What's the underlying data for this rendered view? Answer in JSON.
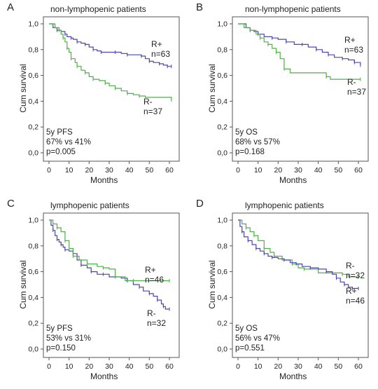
{
  "colors": {
    "R_plus": "#4a48a8",
    "R_minus": "#4fb04a"
  },
  "chart_data": [
    {
      "type": "line",
      "letter": "A",
      "title": "non-lymphopenic patients",
      "xlabel": "Months",
      "ylabel": "Cum survival",
      "xlim": [
        0,
        60
      ],
      "ylim": [
        0,
        1
      ],
      "xticks": [
        "0",
        "10",
        "20",
        "30",
        "40",
        "50",
        "60"
      ],
      "yticks": [
        "0,0",
        "0,2",
        "0,4",
        "0,6",
        "0,8",
        "1,0"
      ],
      "stats": [
        "5y PFS",
        "67% vs 41%",
        "p=0.005"
      ],
      "series": [
        {
          "name": "R+",
          "count": "n=63",
          "color": "#4a48a8",
          "x": [
            0,
            2,
            4,
            6,
            8,
            9,
            11,
            12,
            14,
            16,
            18,
            20,
            22,
            24,
            26,
            28,
            33,
            36,
            39,
            43,
            46,
            48,
            50,
            52,
            55,
            57,
            59,
            61
          ],
          "y": [
            1.0,
            0.97,
            0.95,
            0.94,
            0.92,
            0.9,
            0.89,
            0.88,
            0.86,
            0.85,
            0.84,
            0.82,
            0.8,
            0.79,
            0.78,
            0.78,
            0.78,
            0.77,
            0.76,
            0.76,
            0.75,
            0.73,
            0.71,
            0.7,
            0.69,
            0.68,
            0.67,
            0.67
          ]
        },
        {
          "name": "R-",
          "count": "n=37",
          "color": "#4fb04a",
          "x": [
            0,
            3,
            5,
            6,
            7,
            8,
            9,
            10,
            11,
            13,
            14,
            16,
            18,
            20,
            22,
            25,
            28,
            30,
            33,
            36,
            39,
            42,
            45,
            48,
            61
          ],
          "y": [
            1.0,
            0.97,
            0.95,
            0.92,
            0.89,
            0.86,
            0.81,
            0.78,
            0.73,
            0.7,
            0.67,
            0.64,
            0.62,
            0.59,
            0.57,
            0.56,
            0.54,
            0.52,
            0.5,
            0.48,
            0.46,
            0.45,
            0.44,
            0.43,
            0.41
          ]
        }
      ]
    },
    {
      "type": "line",
      "letter": "B",
      "title": "non-lymphopenic patients",
      "xlabel": "Months",
      "ylabel": "Cum survival",
      "xlim": [
        0,
        60
      ],
      "ylim": [
        0,
        1
      ],
      "xticks": [
        "0",
        "10",
        "20",
        "30",
        "40",
        "50",
        "60"
      ],
      "yticks": [
        "0,0",
        "0,2",
        "0,4",
        "0,6",
        "0,8",
        "1,0"
      ],
      "stats": [
        "5y OS",
        "68% vs 57%",
        "p=0.168"
      ],
      "series": [
        {
          "name": "R+",
          "count": "n=63",
          "color": "#4a48a8",
          "x": [
            0,
            4,
            6,
            8,
            10,
            13,
            17,
            20,
            24,
            28,
            32,
            35,
            39,
            42,
            45,
            48,
            52,
            55,
            58,
            61
          ],
          "y": [
            1.0,
            0.97,
            0.95,
            0.94,
            0.92,
            0.9,
            0.89,
            0.88,
            0.86,
            0.84,
            0.84,
            0.82,
            0.8,
            0.78,
            0.76,
            0.74,
            0.73,
            0.72,
            0.7,
            0.68
          ]
        },
        {
          "name": "R-",
          "count": "n=37",
          "color": "#4fb04a",
          "x": [
            0,
            3,
            6,
            9,
            11,
            13,
            15,
            17,
            19,
            21,
            23,
            26,
            44,
            46,
            61
          ],
          "y": [
            1.0,
            0.97,
            0.95,
            0.92,
            0.89,
            0.86,
            0.84,
            0.81,
            0.78,
            0.73,
            0.65,
            0.62,
            0.59,
            0.57,
            0.57
          ]
        }
      ]
    },
    {
      "type": "line",
      "letter": "C",
      "title": "lymphopenic patients",
      "xlabel": "Months",
      "ylabel": "Cum survival",
      "xlim": [
        0,
        60
      ],
      "ylim": [
        0,
        1
      ],
      "xticks": [
        "0",
        "10",
        "20",
        "30",
        "40",
        "50",
        "60"
      ],
      "yticks": [
        "0,0",
        "0,2",
        "0,4",
        "0,6",
        "0,8",
        "1,0"
      ],
      "stats": [
        "5y PFS",
        "53% vs 31%",
        "p=0.150"
      ],
      "series": [
        {
          "name": "R+",
          "count": "n=46",
          "color": "#4a48a8",
          "x": [
            0,
            1,
            2,
            3,
            4,
            5,
            6,
            7,
            8,
            10,
            12,
            14,
            16,
            19,
            21,
            24,
            27,
            30,
            33,
            36,
            39,
            42,
            45,
            47,
            50,
            52,
            54,
            56,
            57,
            58,
            60
          ],
          "y": [
            1.0,
            0.96,
            0.92,
            0.88,
            0.85,
            0.83,
            0.81,
            0.79,
            0.77,
            0.76,
            0.74,
            0.69,
            0.65,
            0.63,
            0.6,
            0.58,
            0.58,
            0.56,
            0.56,
            0.55,
            0.53,
            0.5,
            0.48,
            0.45,
            0.43,
            0.41,
            0.38,
            0.35,
            0.33,
            0.31,
            0.31
          ]
        },
        {
          "name": "R-",
          "count": "n=32",
          "color": "#4fb04a",
          "x": [
            0,
            2,
            4,
            6,
            8,
            10,
            12,
            15,
            19,
            24,
            27,
            30,
            33,
            38,
            42,
            60
          ],
          "y": [
            1.0,
            0.97,
            0.94,
            0.91,
            0.84,
            0.78,
            0.72,
            0.69,
            0.66,
            0.64,
            0.63,
            0.62,
            0.56,
            0.53,
            0.53,
            0.53
          ]
        }
      ]
    },
    {
      "type": "line",
      "letter": "D",
      "title": "lymphopenic patients",
      "xlabel": "Months",
      "ylabel": "Cum survival",
      "xlim": [
        0,
        60
      ],
      "ylim": [
        0,
        1
      ],
      "xticks": [
        "0",
        "10",
        "20",
        "30",
        "40",
        "50",
        "60"
      ],
      "yticks": [
        "0,0",
        "0,2",
        "0,4",
        "0,6",
        "0,8",
        "1,0"
      ],
      "stats": [
        "5y OS",
        "56% vs 47%",
        "p=0.551"
      ],
      "series": [
        {
          "name": "R-",
          "count": "n=32",
          "color": "#4fb04a",
          "x": [
            0,
            2,
            4,
            6,
            8,
            10,
            13,
            16,
            18,
            22,
            27,
            30,
            33,
            40,
            52,
            55,
            60
          ],
          "y": [
            1.0,
            0.97,
            0.94,
            0.91,
            0.88,
            0.84,
            0.78,
            0.75,
            0.72,
            0.69,
            0.66,
            0.63,
            0.62,
            0.59,
            0.58,
            0.56,
            0.56
          ]
        },
        {
          "name": "R+",
          "count": "n=46",
          "color": "#4a48a8",
          "x": [
            0,
            1,
            2,
            3,
            5,
            7,
            9,
            11,
            13,
            15,
            17,
            20,
            23,
            26,
            29,
            32,
            36,
            40,
            44,
            47,
            49,
            51,
            53,
            55,
            57,
            60
          ],
          "y": [
            1.0,
            0.95,
            0.91,
            0.87,
            0.84,
            0.81,
            0.78,
            0.76,
            0.74,
            0.72,
            0.71,
            0.7,
            0.69,
            0.67,
            0.66,
            0.64,
            0.63,
            0.62,
            0.6,
            0.58,
            0.55,
            0.52,
            0.5,
            0.48,
            0.47,
            0.47
          ]
        }
      ]
    }
  ]
}
